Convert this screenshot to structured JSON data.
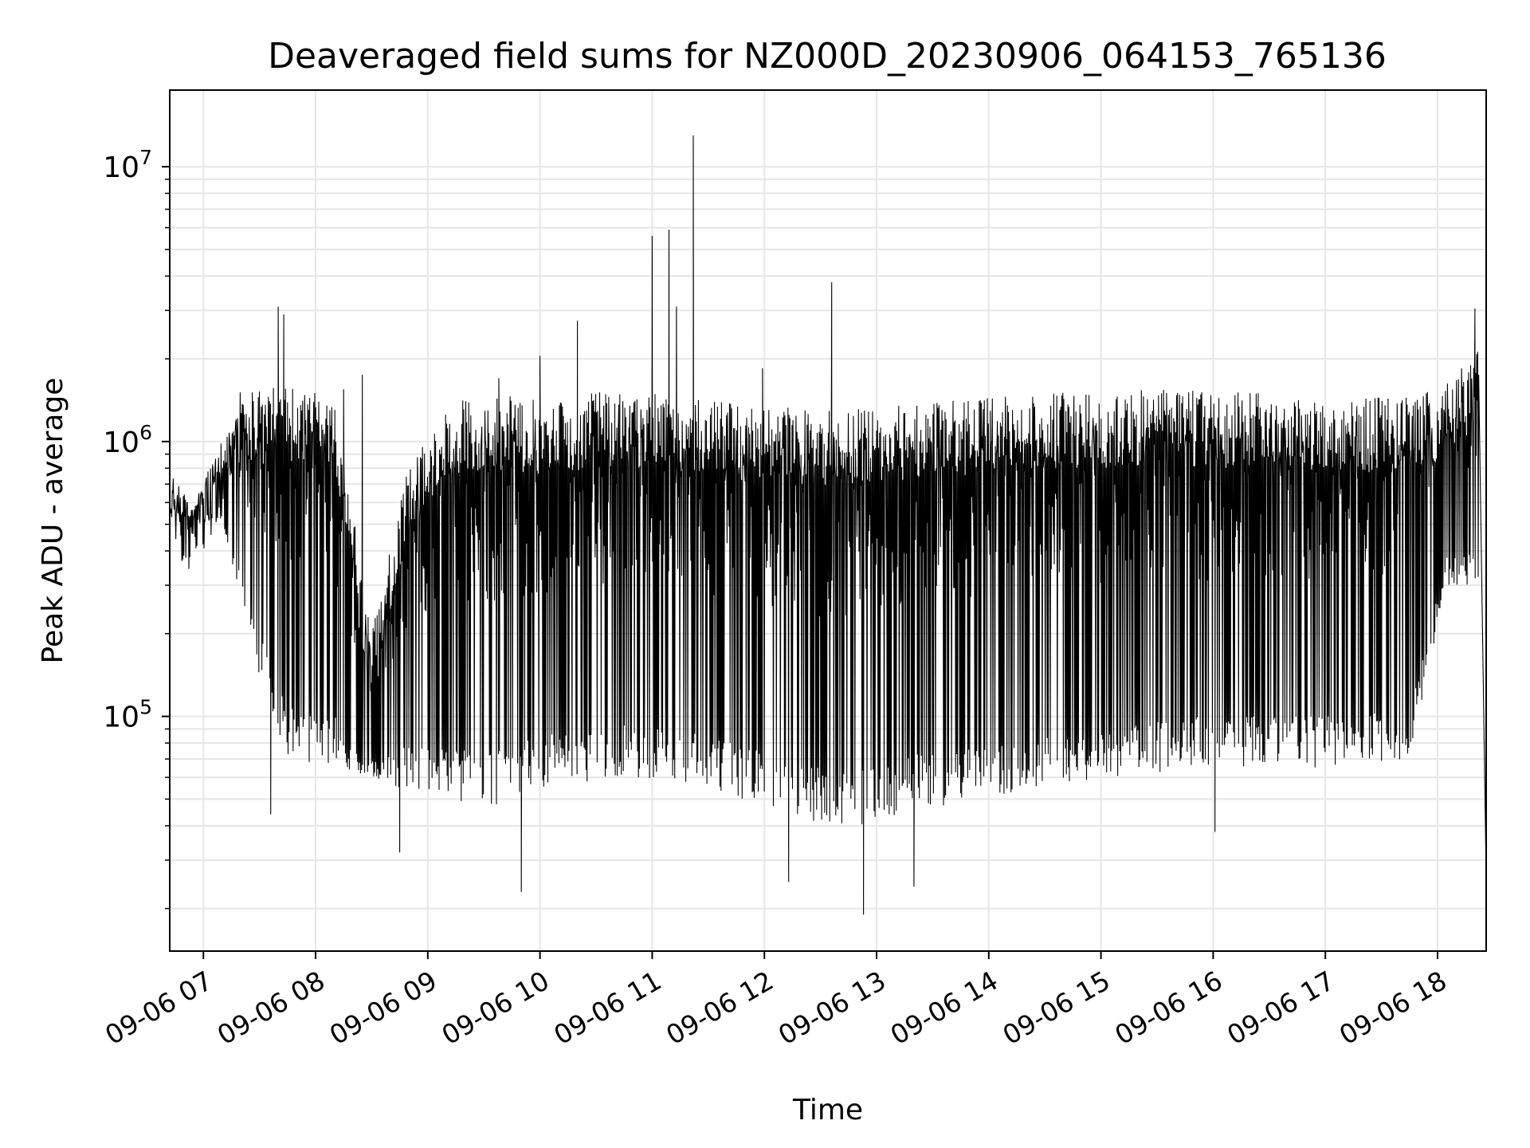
{
  "chart_data": {
    "type": "line",
    "title": "Deaveraged field sums for NZ000D_20230906_064153_765136",
    "xlabel": "Time",
    "ylabel": "Peak ADU - average",
    "yscale": "log",
    "xlim": [
      "2023-09-06T06:42:00",
      "2023-09-06T18:26:00"
    ],
    "ylim": [
      14000,
      19000000
    ],
    "xticks": [
      "09-06 07",
      "09-06 08",
      "09-06 09",
      "09-06 10",
      "09-06 11",
      "09-06 12",
      "09-06 13",
      "09-06 14",
      "09-06 15",
      "09-06 16",
      "09-06 17",
      "09-06 18"
    ],
    "yticks": [
      {
        "value": 100000,
        "base": "10",
        "exp": "5"
      },
      {
        "value": 1000000,
        "base": "10",
        "exp": "6"
      },
      {
        "value": 10000000,
        "base": "10",
        "exp": "7"
      }
    ],
    "grid": true,
    "line_color": "#000000",
    "upper_envelope": [
      {
        "t": "06:42",
        "y": 800000
      },
      {
        "t": "06:55",
        "y": 580000
      },
      {
        "t": "07:05",
        "y": 900000
      },
      {
        "t": "07:20",
        "y": 1550000
      },
      {
        "t": "07:40",
        "y": 1600000
      },
      {
        "t": "08:10",
        "y": 1500000
      },
      {
        "t": "08:30",
        "y": 200000
      },
      {
        "t": "08:50",
        "y": 900000
      },
      {
        "t": "09:20",
        "y": 1500000
      },
      {
        "t": "10:00",
        "y": 1450000
      },
      {
        "t": "10:40",
        "y": 1550000
      },
      {
        "t": "11:20",
        "y": 1450000
      },
      {
        "t": "12:00",
        "y": 1350000
      },
      {
        "t": "12:40",
        "y": 1300000
      },
      {
        "t": "13:30",
        "y": 1400000
      },
      {
        "t": "14:30",
        "y": 1500000
      },
      {
        "t": "15:30",
        "y": 1550000
      },
      {
        "t": "16:30",
        "y": 1500000
      },
      {
        "t": "17:50",
        "y": 1450000
      },
      {
        "t": "18:15",
        "y": 1900000
      },
      {
        "t": "18:22",
        "y": 2300000
      }
    ],
    "lower_envelope": [
      {
        "t": "06:42",
        "y": 550000
      },
      {
        "t": "07:10",
        "y": 500000
      },
      {
        "t": "07:25",
        "y": 180000
      },
      {
        "t": "07:45",
        "y": 70000
      },
      {
        "t": "08:15",
        "y": 65000
      },
      {
        "t": "08:45",
        "y": 55000
      },
      {
        "t": "09:30",
        "y": 45000
      },
      {
        "t": "10:00",
        "y": 55000
      },
      {
        "t": "10:45",
        "y": 60000
      },
      {
        "t": "11:30",
        "y": 55000
      },
      {
        "t": "12:10",
        "y": 45000
      },
      {
        "t": "12:45",
        "y": 38000
      },
      {
        "t": "13:15",
        "y": 45000
      },
      {
        "t": "14:00",
        "y": 50000
      },
      {
        "t": "15:00",
        "y": 60000
      },
      {
        "t": "16:00",
        "y": 65000
      },
      {
        "t": "17:00",
        "y": 65000
      },
      {
        "t": "17:45",
        "y": 70000
      },
      {
        "t": "18:05",
        "y": 300000
      }
    ],
    "spikes": [
      {
        "t": "07:40",
        "y": 3100000
      },
      {
        "t": "07:43",
        "y": 2900000
      },
      {
        "t": "08:15",
        "y": 1550000
      },
      {
        "t": "08:25",
        "y": 1750000
      },
      {
        "t": "09:38",
        "y": 1700000
      },
      {
        "t": "10:00",
        "y": 2050000
      },
      {
        "t": "10:20",
        "y": 2750000
      },
      {
        "t": "11:00",
        "y": 5600000
      },
      {
        "t": "11:09",
        "y": 5900000
      },
      {
        "t": "11:13",
        "y": 3100000
      },
      {
        "t": "11:22",
        "y": 13000000
      },
      {
        "t": "11:59",
        "y": 1850000
      },
      {
        "t": "12:36",
        "y": 3800000
      },
      {
        "t": "18:20",
        "y": 3050000
      }
    ],
    "dips": [
      {
        "t": "07:36",
        "y": 44000
      },
      {
        "t": "08:45",
        "y": 32000
      },
      {
        "t": "09:50",
        "y": 23000
      },
      {
        "t": "12:13",
        "y": 25000
      },
      {
        "t": "12:53",
        "y": 19000
      },
      {
        "t": "13:20",
        "y": 24000
      },
      {
        "t": "16:01",
        "y": 38000
      },
      {
        "t": "18:26",
        "y": 26000
      }
    ]
  }
}
